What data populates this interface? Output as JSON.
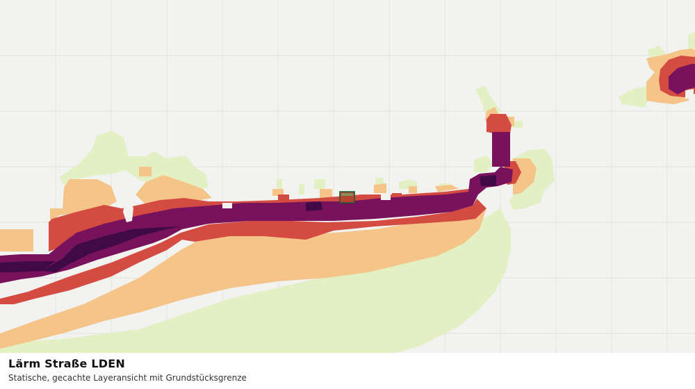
{
  "map": {
    "background": "#f2f3f1",
    "grid_color": "#e2e3e1",
    "noise_classes": [
      {
        "name": "class-1",
        "color": "#e2f0c3"
      },
      {
        "name": "class-2",
        "color": "#f5c489"
      },
      {
        "name": "class-3",
        "color": "#d34b41"
      },
      {
        "name": "class-4",
        "color": "#79125c"
      },
      {
        "name": "class-5",
        "color": "#3f0a45"
      }
    ],
    "parcel": {
      "fill": "#b5452f",
      "stroke": "#1c5a37"
    }
  },
  "caption": {
    "title": "Lärm Straße LDEN",
    "subtitle": "Statische, gecachte Layeransicht mit Grundstücksgrenze"
  }
}
